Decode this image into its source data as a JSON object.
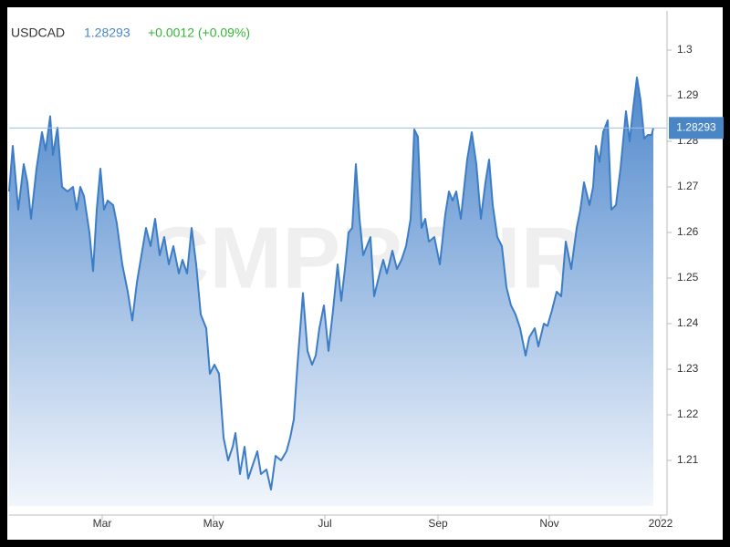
{
  "chart_data": {
    "type": "area",
    "title": "USDCAD",
    "last_price": 1.28293,
    "change": "+0.0012 (+0.09%)",
    "watermark": "CMPRO.IR",
    "color": "#3d7dc6",
    "grid": false,
    "x": [
      8,
      10,
      13,
      16,
      18,
      20,
      23,
      26,
      28,
      30.5,
      32,
      34.5,
      37,
      40,
      43,
      45,
      47,
      49,
      52,
      54,
      56,
      58,
      60,
      62,
      65,
      67,
      70,
      73,
      75.5,
      78,
      80.5,
      83,
      85.5,
      88,
      90.5,
      93,
      95.5,
      98,
      101,
      103,
      105.5,
      108,
      110.5,
      113,
      116,
      118,
      120.5,
      123,
      125.5,
      128,
      130.5,
      132,
      134.5,
      137,
      139,
      141.5,
      144,
      146,
      149,
      151.5,
      154,
      157,
      160,
      162,
      164,
      166,
      169,
      171.5,
      174,
      176,
      178,
      180.5,
      183,
      185.5,
      188,
      190,
      192,
      194,
      196,
      198,
      200,
      202,
      204,
      206,
      208,
      211,
      213,
      215,
      218,
      220.5,
      223,
      225.5,
      228,
      230,
      232,
      234,
      236,
      238,
      241,
      244,
      247,
      249,
      251,
      253,
      255.5,
      259,
      261.5,
      264,
      266.5,
      269,
      271,
      273,
      275.5,
      278,
      280.5,
      283,
      285.5,
      288,
      291,
      293,
      296,
      298,
      301,
      303,
      305.5,
      308,
      310.5,
      313,
      316,
      319,
      321,
      323,
      326,
      328,
      329.5,
      331.5,
      333.5,
      336,
      338,
      340.5,
      343,
      346,
      348,
      350,
      352,
      354,
      356,
      358,
      360,
      361
    ],
    "values": [
      1.269,
      1.279,
      1.265,
      1.275,
      1.271,
      1.263,
      1.274,
      1.282,
      1.278,
      1.2855,
      1.277,
      1.283,
      1.27,
      1.269,
      1.27,
      1.265,
      1.27,
      1.268,
      1.26,
      1.2515,
      1.265,
      1.274,
      1.265,
      1.267,
      1.266,
      1.262,
      1.253,
      1.247,
      1.2407,
      1.249,
      1.255,
      1.261,
      1.257,
      1.263,
      1.255,
      1.259,
      1.253,
      1.257,
      1.251,
      1.254,
      1.251,
      1.261,
      1.253,
      1.242,
      1.239,
      1.229,
      1.231,
      1.229,
      1.215,
      1.21,
      1.213,
      1.216,
      1.207,
      1.213,
      1.206,
      1.209,
      1.212,
      1.207,
      1.208,
      1.2036,
      1.211,
      1.21,
      1.212,
      1.215,
      1.219,
      1.231,
      1.2467,
      1.234,
      1.231,
      1.233,
      1.239,
      1.244,
      1.234,
      1.243,
      1.253,
      1.245,
      1.252,
      1.26,
      1.261,
      1.275,
      1.263,
      1.255,
      1.257,
      1.259,
      1.246,
      1.251,
      1.254,
      1.251,
      1.256,
      1.252,
      1.254,
      1.257,
      1.263,
      1.2826,
      1.281,
      1.261,
      1.263,
      1.258,
      1.259,
      1.253,
      1.264,
      1.269,
      1.267,
      1.269,
      1.263,
      1.276,
      1.282,
      1.275,
      1.263,
      1.271,
      1.276,
      1.266,
      1.259,
      1.257,
      1.248,
      1.244,
      1.242,
      1.239,
      1.233,
      1.237,
      1.239,
      1.235,
      1.24,
      1.2395,
      1.243,
      1.247,
      1.246,
      1.258,
      1.252,
      1.261,
      1.265,
      1.271,
      1.266,
      1.27,
      1.279,
      1.2755,
      1.282,
      1.2846,
      1.265,
      1.266,
      1.274,
      1.2866,
      1.28,
      1.2874,
      1.294,
      1.289,
      1.2806,
      1.2814,
      1.2814,
      1.28293
    ],
    "xlim": [
      8,
      368
    ],
    "xticks": [
      {
        "value": 59,
        "label": "Mar"
      },
      {
        "value": 120,
        "label": "May"
      },
      {
        "value": 181,
        "label": "Jul"
      },
      {
        "value": 243,
        "label": "Sep"
      },
      {
        "value": 304,
        "label": "Nov"
      },
      {
        "value": 365,
        "label": "2022"
      }
    ],
    "ylim": [
      1.2,
      1.3086
    ],
    "yticks": [
      1.21,
      1.22,
      1.23,
      1.24,
      1.25,
      1.26,
      1.27,
      1.28,
      1.29,
      1.3
    ]
  }
}
